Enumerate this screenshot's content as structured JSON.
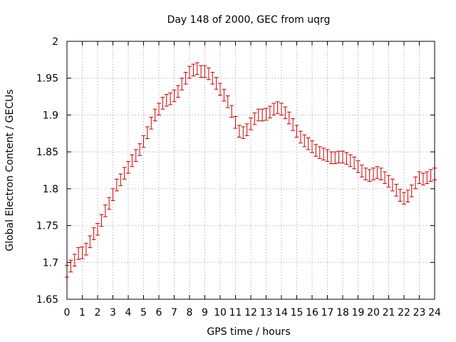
{
  "chart_data": {
    "type": "line",
    "title": "Day 148 of 2000, GEC from uqrg",
    "xlabel": "GPS time / hours",
    "ylabel": "Global Electron Content / GECUs",
    "xlim": [
      0,
      24
    ],
    "ylim": [
      1.65,
      2.0
    ],
    "xticks": [
      "0",
      "1",
      "2",
      "3",
      "4",
      "5",
      "6",
      "7",
      "8",
      "9",
      "10",
      "11",
      "12",
      "13",
      "14",
      "15",
      "16",
      "17",
      "18",
      "19",
      "20",
      "21",
      "22",
      "23",
      "24"
    ],
    "yticks": [
      "1.65",
      "1.7",
      "1.75",
      "1.8",
      "1.85",
      "1.9",
      "1.95",
      "2"
    ],
    "grid": true,
    "color": "#cc0000",
    "series": [
      {
        "x": [
          0.0,
          0.25,
          0.5,
          0.75,
          1.0,
          1.25,
          1.5,
          1.75,
          2.0,
          2.25,
          2.5,
          2.75,
          3.0,
          3.25,
          3.5,
          3.75,
          4.0,
          4.25,
          4.5,
          4.75,
          5.0,
          5.25,
          5.5,
          5.75,
          6.0,
          6.25,
          6.5,
          6.75,
          7.0,
          7.25,
          7.5,
          7.75,
          8.0,
          8.25,
          8.5,
          8.75,
          9.0,
          9.25,
          9.5,
          9.75,
          10.0,
          10.25,
          10.5,
          10.75,
          11.0,
          11.25,
          11.5,
          11.75,
          12.0,
          12.25,
          12.5,
          12.75,
          13.0,
          13.25,
          13.5,
          13.75,
          14.0,
          14.25,
          14.5,
          14.75,
          15.0,
          15.25,
          15.5,
          15.75,
          16.0,
          16.25,
          16.5,
          16.75,
          17.0,
          17.25,
          17.5,
          17.75,
          18.0,
          18.25,
          18.5,
          18.75,
          19.0,
          19.25,
          19.5,
          19.75,
          20.0,
          20.25,
          20.5,
          20.75,
          21.0,
          21.25,
          21.5,
          21.75,
          22.0,
          22.25,
          22.5,
          22.75,
          23.0,
          23.25,
          23.5,
          23.75,
          24.0
        ],
        "y": [
          1.688,
          1.695,
          1.703,
          1.712,
          1.713,
          1.718,
          1.728,
          1.739,
          1.745,
          1.757,
          1.77,
          1.78,
          1.792,
          1.805,
          1.812,
          1.821,
          1.829,
          1.838,
          1.845,
          1.853,
          1.864,
          1.876,
          1.889,
          1.9,
          1.908,
          1.916,
          1.92,
          1.922,
          1.926,
          1.932,
          1.942,
          1.95,
          1.958,
          1.961,
          1.963,
          1.959,
          1.959,
          1.956,
          1.95,
          1.943,
          1.935,
          1.927,
          1.918,
          1.905,
          1.89,
          1.878,
          1.876,
          1.88,
          1.888,
          1.895,
          1.9,
          1.9,
          1.901,
          1.904,
          1.908,
          1.91,
          1.908,
          1.903,
          1.896,
          1.887,
          1.878,
          1.87,
          1.865,
          1.861,
          1.857,
          1.852,
          1.849,
          1.847,
          1.845,
          1.842,
          1.842,
          1.843,
          1.843,
          1.841,
          1.838,
          1.835,
          1.83,
          1.824,
          1.82,
          1.818,
          1.82,
          1.822,
          1.82,
          1.815,
          1.81,
          1.805,
          1.798,
          1.791,
          1.787,
          1.79,
          1.797,
          1.808,
          1.815,
          1.813,
          1.815,
          1.818,
          1.82
        ],
        "error": 0.008
      }
    ]
  }
}
